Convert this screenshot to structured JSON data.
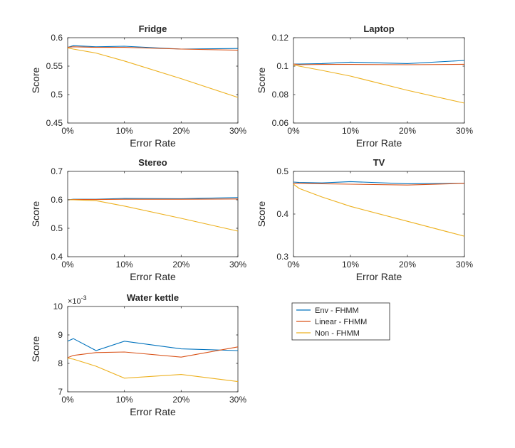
{
  "colors": {
    "env": "#0072BD",
    "linear": "#D95319",
    "non": "#EDB120",
    "axis": "#262626"
  },
  "legend": {
    "placement": "below-right",
    "entries": [
      "Env - FHMM",
      "Linear - FHMM",
      "Non - FHMM"
    ]
  },
  "chart_data": [
    {
      "type": "line",
      "title": "Fridge",
      "xlabel": "Error Rate",
      "ylabel": "Score",
      "x": [
        0,
        1,
        5,
        10,
        20,
        30
      ],
      "xticks": [
        0,
        10,
        20,
        30
      ],
      "xtick_labels": [
        "0%",
        "10%",
        "20%",
        "30%"
      ],
      "ylim": [
        0.45,
        0.6
      ],
      "yticks": [
        0.45,
        0.5,
        0.55,
        0.6
      ],
      "ytick_labels": [
        "0.45",
        "0.5",
        "0.55",
        "0.6"
      ],
      "exponent_label": "",
      "grid": false,
      "series": [
        {
          "name": "Env - FHMM",
          "values": [
            0.583,
            0.586,
            0.584,
            0.585,
            0.58,
            0.581
          ]
        },
        {
          "name": "Linear - FHMM",
          "values": [
            0.583,
            0.584,
            0.583,
            0.583,
            0.58,
            0.578
          ]
        },
        {
          "name": "Non - FHMM",
          "values": [
            0.582,
            0.58,
            0.573,
            0.559,
            0.528,
            0.495
          ]
        }
      ]
    },
    {
      "type": "line",
      "title": "Laptop",
      "xlabel": "Error Rate",
      "ylabel": "Score",
      "x": [
        0,
        1,
        5,
        10,
        20,
        30
      ],
      "xticks": [
        0,
        10,
        20,
        30
      ],
      "xtick_labels": [
        "0%",
        "10%",
        "20%",
        "30%"
      ],
      "ylim": [
        0.06,
        0.12
      ],
      "yticks": [
        0.06,
        0.08,
        0.1,
        0.12
      ],
      "ytick_labels": [
        "0.06",
        "0.08",
        "0.1",
        "0.12"
      ],
      "exponent_label": "",
      "grid": false,
      "series": [
        {
          "name": "Env - FHMM",
          "values": [
            0.1015,
            0.1015,
            0.1018,
            0.1028,
            0.1018,
            0.104
          ]
        },
        {
          "name": "Linear - FHMM",
          "values": [
            0.1015,
            0.101,
            0.1012,
            0.1012,
            0.101,
            0.1013
          ]
        },
        {
          "name": "Non - FHMM",
          "values": [
            0.1008,
            0.1,
            0.097,
            0.093,
            0.083,
            0.074
          ]
        }
      ]
    },
    {
      "type": "line",
      "title": "Stereo",
      "xlabel": "Error Rate",
      "ylabel": "Score",
      "x": [
        0,
        1,
        5,
        10,
        20,
        30
      ],
      "xticks": [
        0,
        10,
        20,
        30
      ],
      "xtick_labels": [
        "0%",
        "10%",
        "20%",
        "30%"
      ],
      "ylim": [
        0.4,
        0.7
      ],
      "yticks": [
        0.4,
        0.5,
        0.6,
        0.7
      ],
      "ytick_labels": [
        "0.4",
        "0.5",
        "0.6",
        "0.7"
      ],
      "exponent_label": "",
      "grid": false,
      "series": [
        {
          "name": "Env - FHMM",
          "values": [
            0.6,
            0.602,
            0.602,
            0.605,
            0.604,
            0.608
          ]
        },
        {
          "name": "Linear - FHMM",
          "values": [
            0.6,
            0.601,
            0.601,
            0.602,
            0.602,
            0.603
          ]
        },
        {
          "name": "Non - FHMM",
          "values": [
            0.6,
            0.6,
            0.597,
            0.578,
            0.535,
            0.49
          ]
        }
      ]
    },
    {
      "type": "line",
      "title": "TV",
      "xlabel": "Error Rate",
      "ylabel": "Score",
      "x": [
        0,
        1,
        5,
        10,
        20,
        30
      ],
      "xticks": [
        0,
        10,
        20,
        30
      ],
      "xtick_labels": [
        "0%",
        "10%",
        "20%",
        "30%"
      ],
      "ylim": [
        0.3,
        0.5
      ],
      "yticks": [
        0.3,
        0.4,
        0.5
      ],
      "ytick_labels": [
        "0.3",
        "0.4",
        "0.5"
      ],
      "exponent_label": "",
      "grid": false,
      "series": [
        {
          "name": "Env - FHMM",
          "values": [
            0.475,
            0.474,
            0.473,
            0.476,
            0.471,
            0.472
          ]
        },
        {
          "name": "Linear - FHMM",
          "values": [
            0.472,
            0.472,
            0.471,
            0.47,
            0.468,
            0.472
          ]
        },
        {
          "name": "Non - FHMM",
          "values": [
            0.47,
            0.46,
            0.44,
            0.418,
            0.383,
            0.348
          ]
        }
      ]
    },
    {
      "type": "line",
      "title": "Water kettle",
      "xlabel": "Error Rate",
      "ylabel": "Score",
      "x": [
        0,
        1,
        5,
        10,
        20,
        30
      ],
      "xticks": [
        0,
        10,
        20,
        30
      ],
      "xtick_labels": [
        "0%",
        "10%",
        "20%",
        "30%"
      ],
      "ylim": [
        0.007,
        0.01
      ],
      "yticks": [
        0.007,
        0.008,
        0.009,
        0.01
      ],
      "ytick_labels": [
        "7",
        "8",
        "9",
        "10"
      ],
      "exponent_label": "×10",
      "exponent_power": "-3",
      "grid": false,
      "series": [
        {
          "name": "Env - FHMM",
          "values": [
            0.00878,
            0.00887,
            0.00845,
            0.00878,
            0.00851,
            0.00845
          ]
        },
        {
          "name": "Linear - FHMM",
          "values": [
            0.0082,
            0.00828,
            0.00838,
            0.0084,
            0.00822,
            0.00858
          ]
        },
        {
          "name": "Non - FHMM",
          "values": [
            0.00818,
            0.00815,
            0.0079,
            0.00748,
            0.00761,
            0.00736
          ]
        }
      ]
    }
  ]
}
